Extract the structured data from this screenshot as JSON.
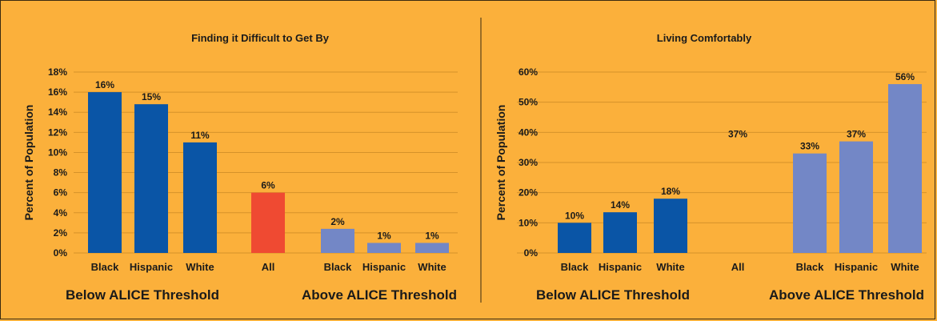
{
  "chart_data": [
    {
      "type": "bar",
      "title": "Finding it Difficult to Get By",
      "ylabel": "Percent of Population",
      "ylim": [
        0,
        18
      ],
      "yticks": [
        0,
        2,
        4,
        6,
        8,
        10,
        12,
        14,
        16,
        18
      ],
      "ytick_suffix": "%",
      "grid": true,
      "groups": [
        "Below ALICE Threshold",
        "Above ALICE Threshold"
      ],
      "bars": [
        {
          "category": "Black",
          "value": 16,
          "label": "16%",
          "color": "#0A55A6"
        },
        {
          "category": "Hispanic",
          "value": 14.8,
          "label": "15%",
          "color": "#0A55A6"
        },
        {
          "category": "White",
          "value": 11,
          "label": "11%",
          "color": "#0A55A6"
        },
        {
          "category": "All",
          "value": 6,
          "label": "6%",
          "color": "#EF4A32"
        },
        {
          "category": "Black",
          "value": 2.4,
          "label": "2%",
          "color": "#7387C6"
        },
        {
          "category": "Hispanic",
          "value": 1,
          "label": "1%",
          "color": "#7387C6"
        },
        {
          "category": "White",
          "value": 1,
          "label": "1%",
          "color": "#7387C6"
        }
      ]
    },
    {
      "type": "bar",
      "title": "Living Comfortably",
      "ylabel": "Percent of Population",
      "ylim": [
        0,
        60
      ],
      "yticks": [
        0,
        10,
        20,
        30,
        40,
        50,
        60
      ],
      "ytick_suffix": "%",
      "grid": true,
      "groups": [
        "Below ALICE Threshold",
        "Above ALICE Threshold"
      ],
      "bars": [
        {
          "category": "Black",
          "value": 10,
          "label": "10%",
          "color": "#0A55A6"
        },
        {
          "category": "Hispanic",
          "value": 13.5,
          "label": "14%",
          "color": "#0A55A6"
        },
        {
          "category": "White",
          "value": 18,
          "label": "18%",
          "color": "#0A55A6"
        },
        {
          "category": "All",
          "value": 37,
          "label": "37%",
          "color": "#EF4A32",
          "hidden": true
        },
        {
          "category": "Black",
          "value": 33,
          "label": "33%",
          "color": "#7387C6"
        },
        {
          "category": "Hispanic",
          "value": 37,
          "label": "37%",
          "color": "#7387C6"
        },
        {
          "category": "White",
          "value": 56,
          "label": "56%",
          "color": "#7387C6"
        }
      ]
    }
  ]
}
